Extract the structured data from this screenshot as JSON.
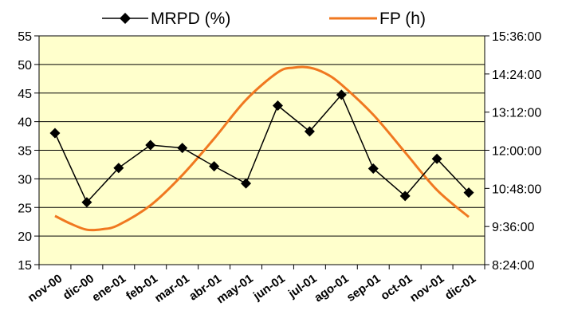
{
  "chart_data": {
    "type": "line",
    "categories": [
      "nov-00",
      "dic-00",
      "ene-01",
      "feb-01",
      "mar-01",
      "abr-01",
      "may-01",
      "jun-01",
      "jul-01",
      "ago-01",
      "sep-01",
      "oct-01",
      "nov-01",
      "dic-01"
    ],
    "series": [
      {
        "name": "MRPD (%)",
        "axis": "left",
        "marker": "diamond",
        "color": "#000000",
        "values": [
          38.0,
          25.9,
          31.9,
          35.9,
          35.4,
          32.2,
          29.2,
          42.8,
          38.3,
          44.7,
          31.8,
          27.0,
          33.5,
          27.6
        ]
      },
      {
        "name": "FP (h)",
        "axis": "right",
        "color": "#f07820",
        "smooth": true,
        "x": [
          0,
          0.5,
          1,
          1.5,
          2,
          3,
          4,
          5,
          6,
          7,
          7.5,
          8,
          8.5,
          9,
          10,
          11,
          12,
          13
        ],
        "values": [
          "9:56:00",
          "9:41:00",
          "9:30:00",
          "9:31:00",
          "9:39:00",
          "10:16:00",
          "11:13:00",
          "12:22:00",
          "13:35:00",
          "14:27:00",
          "14:36:00",
          "14:36:00",
          "14:25:00",
          "14:04:00",
          "13:07:00",
          "11:56:00",
          "10:45:00",
          "9:54:00"
        ]
      }
    ],
    "y_left": {
      "ticks": [
        "55",
        "50",
        "45",
        "40",
        "35",
        "30",
        "25",
        "20",
        "15"
      ],
      "ylim": [
        15,
        55
      ]
    },
    "y_right": {
      "ticks": [
        "15:36:00",
        "14:24:00",
        "13:12:00",
        "12:00:00",
        "10:48:00",
        "9:36:00",
        "8:24:00"
      ],
      "ylim": [
        "8:24:00",
        "15:36:00"
      ]
    },
    "plot_background": "#ffffcc",
    "grid": true,
    "legend": "top"
  }
}
